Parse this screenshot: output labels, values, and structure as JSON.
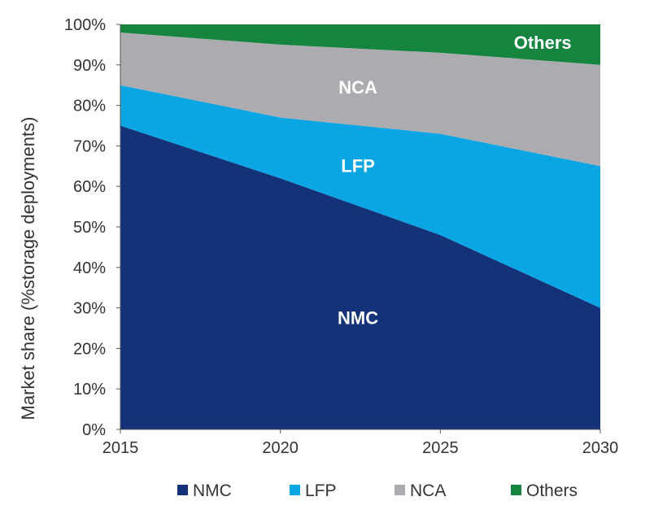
{
  "chart_data": {
    "type": "area",
    "stacked": true,
    "x": [
      2015,
      2020,
      2025,
      2030
    ],
    "xticks": [
      "2015",
      "2020",
      "2025",
      "2030"
    ],
    "yticks": [
      "0%",
      "10%",
      "20%",
      "30%",
      "40%",
      "50%",
      "60%",
      "70%",
      "80%",
      "90%",
      "100%"
    ],
    "ylim": [
      0,
      100
    ],
    "ylabel": "Market share (%storage deployments)",
    "xlabel": "",
    "grid": false,
    "legend_position": "bottom",
    "series": [
      {
        "name": "NMC",
        "color": "#14327a",
        "values": [
          75,
          62,
          48,
          30
        ]
      },
      {
        "name": "LFP",
        "color": "#0aa5e3",
        "values": [
          10,
          15,
          25,
          35
        ]
      },
      {
        "name": "NCA",
        "color": "#acacb0",
        "values": [
          13,
          18,
          20,
          25
        ]
      },
      {
        "name": "Others",
        "color": "#15843f",
        "values": [
          2,
          5,
          7,
          10
        ]
      }
    ],
    "annotations": [
      "NMC",
      "LFP",
      "NCA",
      "Others"
    ]
  }
}
